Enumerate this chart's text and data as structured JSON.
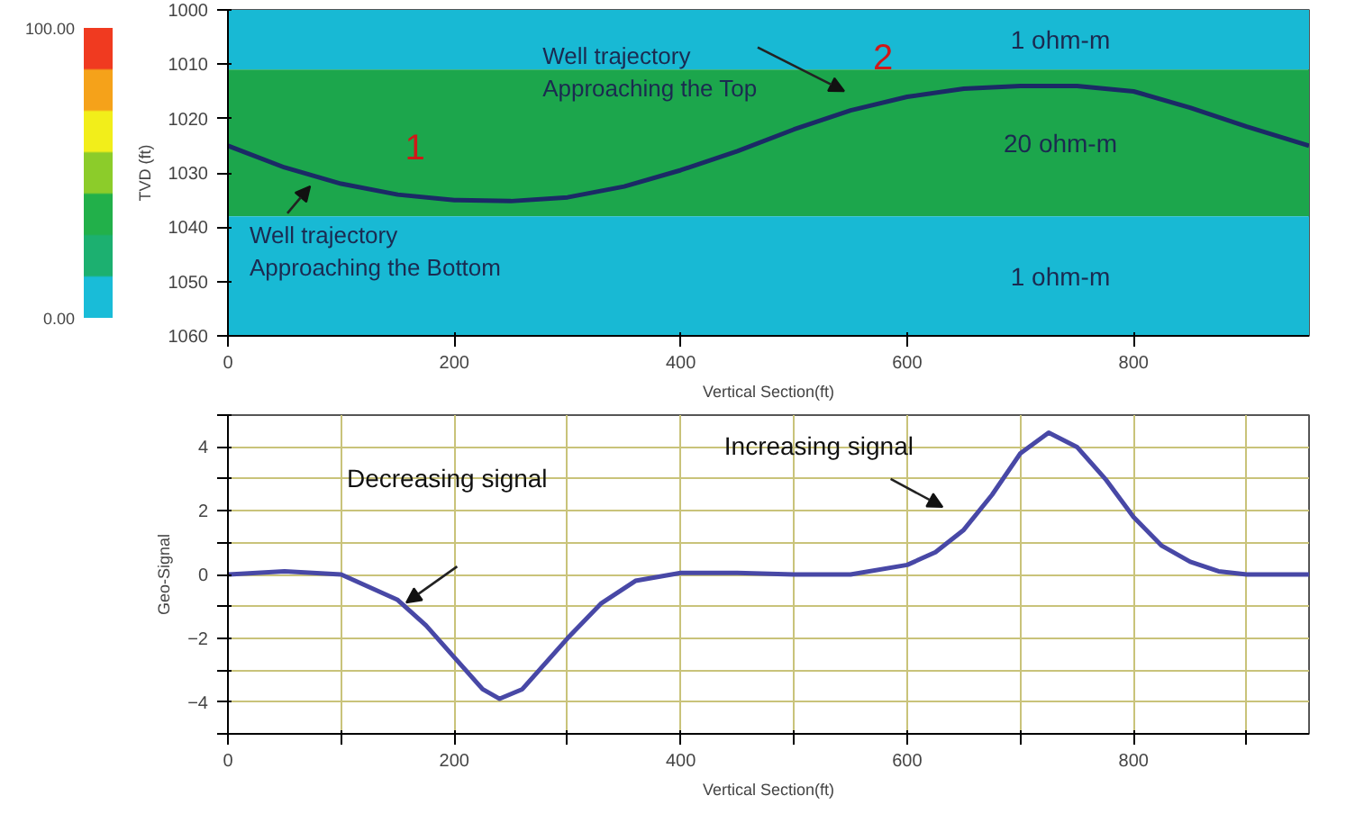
{
  "chart_data": [
    {
      "type": "line",
      "ylabel": "TVD (ft)",
      "xlabel": "Vertical Section(ft)",
      "xlim": [
        0,
        955
      ],
      "ylim": [
        1060,
        1000
      ],
      "xticks": [
        0,
        200,
        400,
        600,
        800
      ],
      "yticks": [
        1000,
        1010,
        1020,
        1030,
        1040,
        1050,
        1060
      ],
      "grid": false,
      "clim": [
        0,
        100
      ],
      "cticks": [
        {
          "value": 0,
          "label": "0.00"
        },
        {
          "value": 100,
          "label": "100.00"
        }
      ],
      "bands": [
        {
          "axis": "y",
          "from": 1000,
          "to": 1011,
          "label": "1 ohm-m",
          "color": "#18b9d4"
        },
        {
          "axis": "y",
          "from": 1011,
          "to": 1038,
          "label": "20 ohm-m",
          "color": "#1ca64c"
        },
        {
          "axis": "y",
          "from": 1038,
          "to": 1060,
          "label": "1 ohm-m",
          "color": "#18b9d4"
        }
      ],
      "series": [
        {
          "color": "#1b2a66",
          "x": [
            0,
            50,
            100,
            150,
            200,
            250,
            300,
            350,
            400,
            450,
            500,
            550,
            600,
            650,
            700,
            750,
            800,
            850,
            900,
            955
          ],
          "values": [
            1025,
            1029,
            1032,
            1034,
            1035,
            1035.2,
            1034.5,
            1032.5,
            1029.5,
            1026,
            1022,
            1018.5,
            1016,
            1014.5,
            1014,
            1014,
            1015,
            1018,
            1021.5,
            1025
          ]
        }
      ],
      "annotations": [
        "1",
        "Well trajectory\nApproaching the Top",
        "2",
        "Well trajectory\nApproaching the Bottom"
      ]
    },
    {
      "type": "line",
      "ylabel": "Geo-Signal",
      "xlabel": "Vertical Section(ft)",
      "xlim": [
        0,
        955
      ],
      "ylim": [
        -5,
        5
      ],
      "xticks": [
        0,
        {
          "value": 100,
          "label": null
        },
        200,
        {
          "value": 300,
          "label": null
        },
        400,
        {
          "value": 500,
          "label": null
        },
        600,
        {
          "value": 700,
          "label": null
        },
        800,
        {
          "value": 900,
          "label": null
        }
      ],
      "yticks": [
        {
          "value": -5,
          "label": null
        },
        -4,
        {
          "value": -3,
          "label": null
        },
        -2,
        {
          "value": -1,
          "label": null
        },
        0,
        {
          "value": 1,
          "label": null
        },
        2,
        {
          "value": 3,
          "label": null
        },
        4,
        {
          "value": 5,
          "label": null
        }
      ],
      "grid": true,
      "series": [
        {
          "color": "#4848a6",
          "x": [
            0,
            50,
            100,
            150,
            175,
            200,
            225,
            240,
            260,
            300,
            330,
            360,
            400,
            450,
            500,
            550,
            600,
            625,
            650,
            675,
            700,
            725,
            750,
            775,
            800,
            825,
            850,
            875,
            900,
            955
          ],
          "values": [
            0,
            0.1,
            0,
            -0.8,
            -1.6,
            -2.6,
            -3.6,
            -3.9,
            -3.6,
            -2,
            -0.9,
            -0.2,
            0.05,
            0.05,
            0,
            0,
            0.3,
            0.7,
            1.4,
            2.5,
            3.8,
            4.45,
            4.0,
            3.0,
            1.8,
            0.9,
            0.4,
            0.1,
            0,
            0
          ]
        }
      ],
      "annotations": [
        "Decreasing signal",
        "Increasing signal"
      ]
    }
  ]
}
